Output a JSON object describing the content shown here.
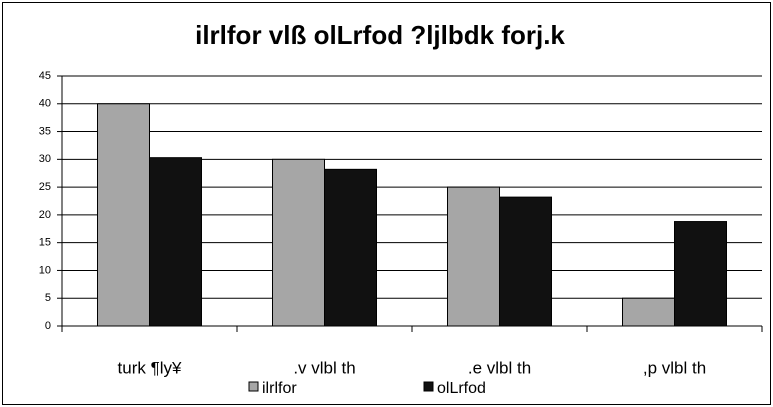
{
  "chart_data": {
    "type": "bar",
    "title": "ilrlfor vlß olLrfod ?ljlbdk forj.k",
    "categories": [
      "turk ¶ly¥",
      ".v vlbl th",
      ".e vlbl th",
      ",p vlbl th"
    ],
    "series": [
      {
        "name": "ilrlfor",
        "color": "#a6a6a6",
        "values": [
          40,
          30,
          25,
          5
        ]
      },
      {
        "name": "olLrfod",
        "color": "#111111",
        "values": [
          30.3,
          28.2,
          23.2,
          18.8
        ]
      }
    ],
    "ylim": [
      0,
      45
    ],
    "yticks": [
      0,
      5,
      10,
      15,
      20,
      25,
      30,
      35,
      40,
      45
    ],
    "grid": true
  }
}
